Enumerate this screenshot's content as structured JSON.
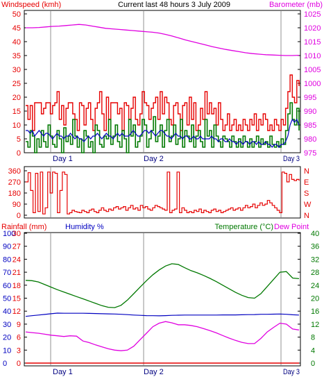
{
  "header": {
    "wind_label": "Windspeed (kmh)",
    "title": "Current last 48 hours 3 July 2009",
    "baro_label": "Barometer (mb)"
  },
  "panel3_header": {
    "rain_label": "Rainfall (mm)",
    "humidity_label": "Humidity %",
    "temp_label": "Temperature (°C)",
    "dew_label": "Dew Point"
  },
  "x_labels": [
    "Day 1",
    "Day 2",
    "Day 3"
  ],
  "colors": {
    "wind": "#e60000",
    "gust": "#e60000",
    "avg_wind": "#0000c0",
    "green": "#007800",
    "baro": "#e000e0",
    "humidity": "#0000c0",
    "temp": "#007800",
    "dew": "#e000e0",
    "rain": "#e60000",
    "grid": "#c8c8c8",
    "frame": "#000000"
  },
  "chart_data": [
    {
      "type": "line",
      "name": "wind-and-barometer",
      "x_range_hours": [
        0,
        48
      ],
      "left_axis": {
        "label": "Windspeed (kmh)",
        "ticks": [
          0,
          5,
          10,
          15,
          20,
          25,
          30,
          35,
          40,
          45,
          50
        ],
        "range": [
          0,
          50
        ]
      },
      "right_axis": {
        "label": "Barometer (mb)",
        "ticks": [
          975,
          980,
          985,
          990,
          995,
          1000,
          1005,
          1010,
          1015,
          1020,
          1025
        ],
        "range": [
          975,
          1025
        ]
      },
      "series": [
        {
          "role": "gust",
          "axis": "left",
          "values": [
            17,
            12,
            17,
            8,
            18,
            18,
            18,
            14,
            16,
            18,
            18,
            14,
            17,
            18,
            22,
            12,
            17,
            10,
            16,
            18,
            18,
            14,
            12,
            8,
            18,
            17,
            10,
            16,
            18,
            12,
            8,
            16,
            18,
            22,
            14,
            8,
            20,
            12,
            18,
            18,
            18,
            14,
            16,
            8,
            18,
            17,
            12,
            16,
            20,
            12,
            10,
            14,
            22,
            18,
            17,
            12,
            16,
            18,
            20,
            12,
            22,
            14,
            20,
            18,
            12,
            10,
            17,
            18,
            14,
            8,
            17,
            18,
            10,
            20,
            12,
            18,
            8,
            10,
            16,
            12,
            22,
            14,
            18,
            14,
            16,
            10,
            18,
            12,
            8,
            10,
            14,
            8,
            10,
            12,
            8,
            10,
            8,
            12,
            10,
            8,
            12,
            10,
            14,
            8,
            12,
            10,
            14,
            12,
            8,
            10,
            8,
            12,
            10,
            8,
            12,
            10,
            16,
            22,
            28,
            20,
            18,
            26,
            24
          ]
        },
        {
          "role": "green-wind",
          "axis": "left",
          "values": [
            4,
            2,
            8,
            6,
            0,
            5,
            2,
            8,
            4,
            2,
            10,
            6,
            3,
            2,
            8,
            5,
            0,
            9,
            4,
            6,
            3,
            12,
            6,
            2,
            5,
            0,
            8,
            6,
            2,
            4,
            0,
            10,
            8,
            3,
            2,
            6,
            5,
            12,
            3,
            6,
            10,
            4,
            2,
            8,
            5,
            0,
            12,
            6,
            10,
            2,
            4,
            6,
            12,
            10,
            2,
            5,
            8,
            13,
            4,
            6,
            10,
            2,
            8,
            12,
            4,
            6,
            10,
            3,
            5,
            12,
            2,
            8,
            6,
            4,
            10,
            2,
            6,
            8,
            4,
            2,
            12,
            6,
            8,
            2,
            10,
            6,
            4,
            2,
            6,
            5,
            4,
            2,
            6,
            4,
            2,
            5,
            2,
            6,
            4,
            2,
            5,
            2,
            4,
            6,
            2,
            5,
            3,
            4,
            2,
            6,
            3,
            2,
            4,
            2,
            5,
            3,
            8,
            14,
            18,
            12,
            10,
            16,
            8
          ]
        },
        {
          "role": "avg-wind",
          "axis": "left",
          "values": [
            8,
            8,
            7,
            8,
            6,
            7,
            8,
            7,
            6,
            7,
            7,
            6,
            5,
            6,
            7,
            6,
            6,
            5,
            6,
            6,
            7,
            6,
            5,
            6,
            5,
            5,
            4,
            5,
            6,
            5,
            6,
            6,
            7,
            6,
            5,
            6,
            7,
            6,
            6,
            5,
            6,
            7,
            6,
            7,
            6,
            6,
            6,
            7,
            8,
            7,
            6,
            6,
            7,
            8,
            8,
            7,
            8,
            7,
            6,
            7,
            8,
            8,
            7,
            6,
            6,
            5,
            6,
            7,
            6,
            6,
            5,
            6,
            6,
            5,
            5,
            6,
            5,
            5,
            6,
            5,
            5,
            5,
            5,
            6,
            5,
            5,
            4,
            5,
            5,
            4,
            4,
            5,
            4,
            4,
            3,
            4,
            4,
            3,
            4,
            4,
            3,
            4,
            4,
            3,
            4,
            3,
            3,
            4,
            3,
            3,
            2,
            3,
            3,
            2,
            3,
            3,
            4,
            6,
            10,
            12,
            11,
            12,
            10
          ]
        },
        {
          "role": "barometer",
          "axis": "right",
          "values": [
            1020.0,
            1020.0,
            1020.1,
            1020.3,
            1020.5,
            1020.6,
            1020.8,
            1021.0,
            1021.2,
            1021.0,
            1020.6,
            1020.2,
            1019.8,
            1019.6,
            1019.4,
            1019.2,
            1019.0,
            1018.8,
            1018.6,
            1018.4,
            1018.1,
            1017.6,
            1017.0,
            1016.3,
            1015.6,
            1015.0,
            1014.4,
            1013.8,
            1013.2,
            1012.7,
            1012.2,
            1011.8,
            1011.4,
            1011.0,
            1010.7,
            1010.5,
            1010.3,
            1010.2,
            1010.1,
            1010.0,
            1010.0,
            1010.1
          ]
        }
      ]
    },
    {
      "type": "scatter",
      "name": "wind-direction",
      "x_range_hours": [
        0,
        48
      ],
      "left_axis": {
        "ticks": [
          0,
          90,
          180,
          270,
          360
        ],
        "range": [
          0,
          360
        ]
      },
      "right_axis": {
        "ticks": [
          "N",
          "W",
          "S",
          "E",
          "N"
        ]
      },
      "values": [
        270,
        345,
        200,
        20,
        340,
        30,
        350,
        10,
        60,
        350,
        180,
        350,
        340,
        20,
        200,
        350,
        330,
        10,
        20,
        40,
        30,
        25,
        20,
        40,
        30,
        20,
        40,
        50,
        30,
        20,
        40,
        60,
        40,
        30,
        50,
        40,
        60,
        70,
        50,
        60,
        70,
        40,
        60,
        80,
        50,
        60,
        40,
        80,
        60,
        70,
        50,
        40,
        60,
        80,
        70,
        60,
        50,
        40,
        350,
        20,
        40,
        50,
        350,
        20,
        60,
        40,
        20,
        30,
        20,
        40,
        30,
        50,
        20,
        40,
        30,
        20,
        40,
        50,
        30,
        40,
        20,
        30,
        40,
        50,
        60,
        40,
        50,
        60,
        40,
        60,
        80,
        60,
        70,
        90,
        60,
        80,
        100,
        80,
        90,
        120,
        100,
        80,
        60,
        40,
        20,
        350,
        340,
        270,
        330,
        290,
        280,
        290,
        280
      ]
    },
    {
      "type": "line",
      "name": "rain-humidity-temperature",
      "x_range_hours": [
        0,
        48
      ],
      "left_axis_rain": {
        "label": "Rainfall (mm)",
        "ticks": [
          0,
          3,
          6,
          9,
          12,
          15,
          18,
          21,
          24,
          27,
          30
        ],
        "range": [
          0,
          30
        ]
      },
      "left_axis_humidity": {
        "label": "Humidity %",
        "ticks": [
          0,
          10,
          20,
          30,
          40,
          50,
          60,
          70,
          80,
          90,
          100
        ],
        "range": [
          0,
          100
        ]
      },
      "right_axis": {
        "label": "Temperature (°C)",
        "ticks": [
          0,
          4,
          8,
          12,
          16,
          20,
          24,
          28,
          32,
          36,
          40
        ],
        "range": [
          0,
          40
        ]
      },
      "series": [
        {
          "role": "temperature",
          "axis": "right",
          "values": [
            25.5,
            25.4,
            25.0,
            24.2,
            23.4,
            22.6,
            21.9,
            21.2,
            20.5,
            19.8,
            19.1,
            18.4,
            17.7,
            17.2,
            17.1,
            17.8,
            19.4,
            21.4,
            23.4,
            25.4,
            27.2,
            28.7,
            29.9,
            30.6,
            30.4,
            29.4,
            28.5,
            27.8,
            27.0,
            26.1,
            25.1,
            24.0,
            22.9,
            21.8,
            20.9,
            20.2,
            20.0,
            21.4,
            23.6,
            25.8,
            28.0,
            28.2,
            26.2,
            26.0
          ]
        },
        {
          "role": "dew-point",
          "axis": "right",
          "values": [
            9.6,
            9.4,
            9.2,
            8.9,
            8.6,
            8.4,
            8.2,
            8.4,
            8.3,
            6.8,
            6.3,
            5.6,
            5.0,
            4.4,
            4.0,
            3.8,
            4.0,
            5.2,
            7.2,
            9.2,
            11.2,
            12.3,
            12.8,
            12.4,
            11.8,
            11.8,
            11.6,
            11.2,
            10.6,
            10.0,
            9.3,
            8.5,
            7.7,
            7.0,
            6.4,
            6.0,
            6.0,
            7.6,
            9.6,
            11.0,
            12.3,
            12.0,
            10.5,
            10.2
          ]
        },
        {
          "role": "humidity",
          "axis": "humidity",
          "values": [
            36.0,
            36.5,
            37.0,
            37.5,
            38.0,
            38.5,
            38.4,
            38.4,
            38.4,
            38.4,
            38.3,
            38.2,
            38.0,
            37.9,
            37.8,
            37.6,
            37.3,
            37.0,
            36.8,
            36.6,
            36.5,
            36.4,
            36.6,
            36.8,
            36.9,
            37.0,
            37.0,
            37.0,
            37.0,
            37.0,
            37.0,
            37.1,
            37.1,
            37.1,
            37.2,
            37.3,
            37.4,
            37.6,
            37.6,
            37.7,
            37.8,
            37.6,
            37.2,
            37.0
          ]
        },
        {
          "role": "rainfall",
          "axis": "rain",
          "values": [
            0,
            0,
            0,
            0,
            0,
            0,
            0,
            0,
            0,
            0
          ]
        }
      ]
    }
  ]
}
